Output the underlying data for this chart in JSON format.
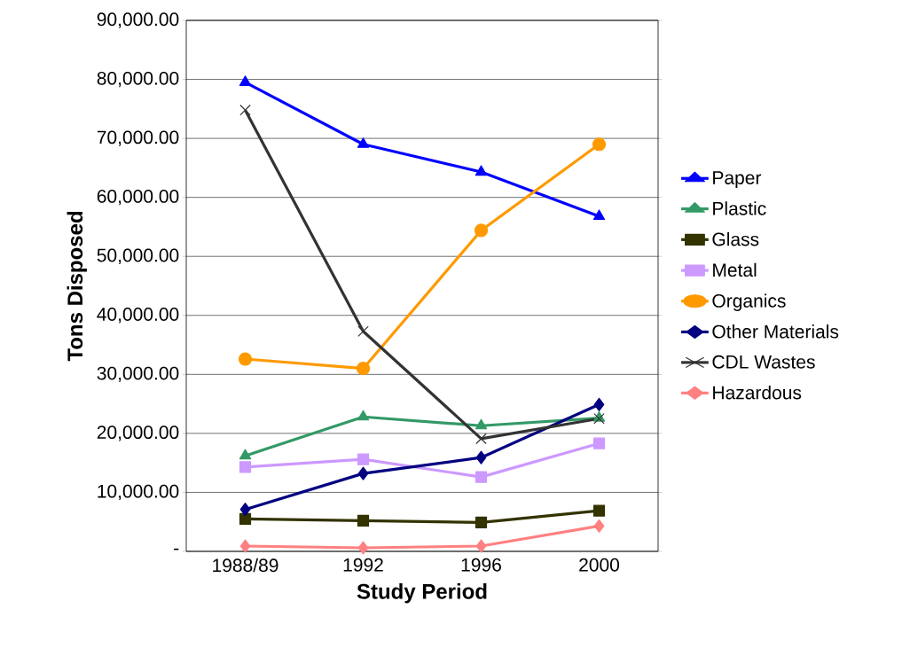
{
  "chart_data": {
    "type": "line",
    "xlabel": "Study Period",
    "ylabel": "Tons Disposed",
    "categories": [
      "1988/89",
      "1992",
      "1996",
      "2000"
    ],
    "series": [
      {
        "name": "Paper",
        "color": "#0000ff",
        "marker": "triangle",
        "values": [
          79500,
          69000,
          64300,
          56800
        ]
      },
      {
        "name": "Plastic",
        "color": "#339966",
        "marker": "triangle",
        "values": [
          16200,
          22800,
          21300,
          22600
        ]
      },
      {
        "name": "Glass",
        "color": "#333300",
        "marker": "square",
        "values": [
          5500,
          5200,
          4900,
          6900
        ]
      },
      {
        "name": "Metal",
        "color": "#cc99ff",
        "marker": "square",
        "values": [
          14300,
          15600,
          12600,
          18300
        ]
      },
      {
        "name": "Organics",
        "color": "#ff9900",
        "marker": "circle",
        "values": [
          32600,
          31000,
          54400,
          69000
        ]
      },
      {
        "name": "Other Materials",
        "color": "#000080",
        "marker": "diamond",
        "values": [
          7100,
          13200,
          15900,
          24900
        ]
      },
      {
        "name": "CDL Wastes",
        "color": "#333333",
        "marker": "cross",
        "values": [
          74800,
          37300,
          19100,
          22500
        ]
      },
      {
        "name": "Hazardous",
        "color": "#ff8080",
        "marker": "diamond",
        "values": [
          900,
          600,
          900,
          4300
        ]
      }
    ],
    "ylim": [
      0,
      90000
    ],
    "yticks": [
      {
        "value": 0,
        "label": "-"
      },
      {
        "value": 10000,
        "label": "10,000.00"
      },
      {
        "value": 20000,
        "label": "20,000.00"
      },
      {
        "value": 30000,
        "label": "30,000.00"
      },
      {
        "value": 40000,
        "label": "40,000.00"
      },
      {
        "value": 50000,
        "label": "50,000.00"
      },
      {
        "value": 60000,
        "label": "60,000.00"
      },
      {
        "value": 70000,
        "label": "70,000.00"
      },
      {
        "value": 80000,
        "label": "80,000.00"
      },
      {
        "value": 90000,
        "label": "90,000.00"
      }
    ],
    "grid": "y",
    "legend": "right",
    "line_style": "solid"
  }
}
